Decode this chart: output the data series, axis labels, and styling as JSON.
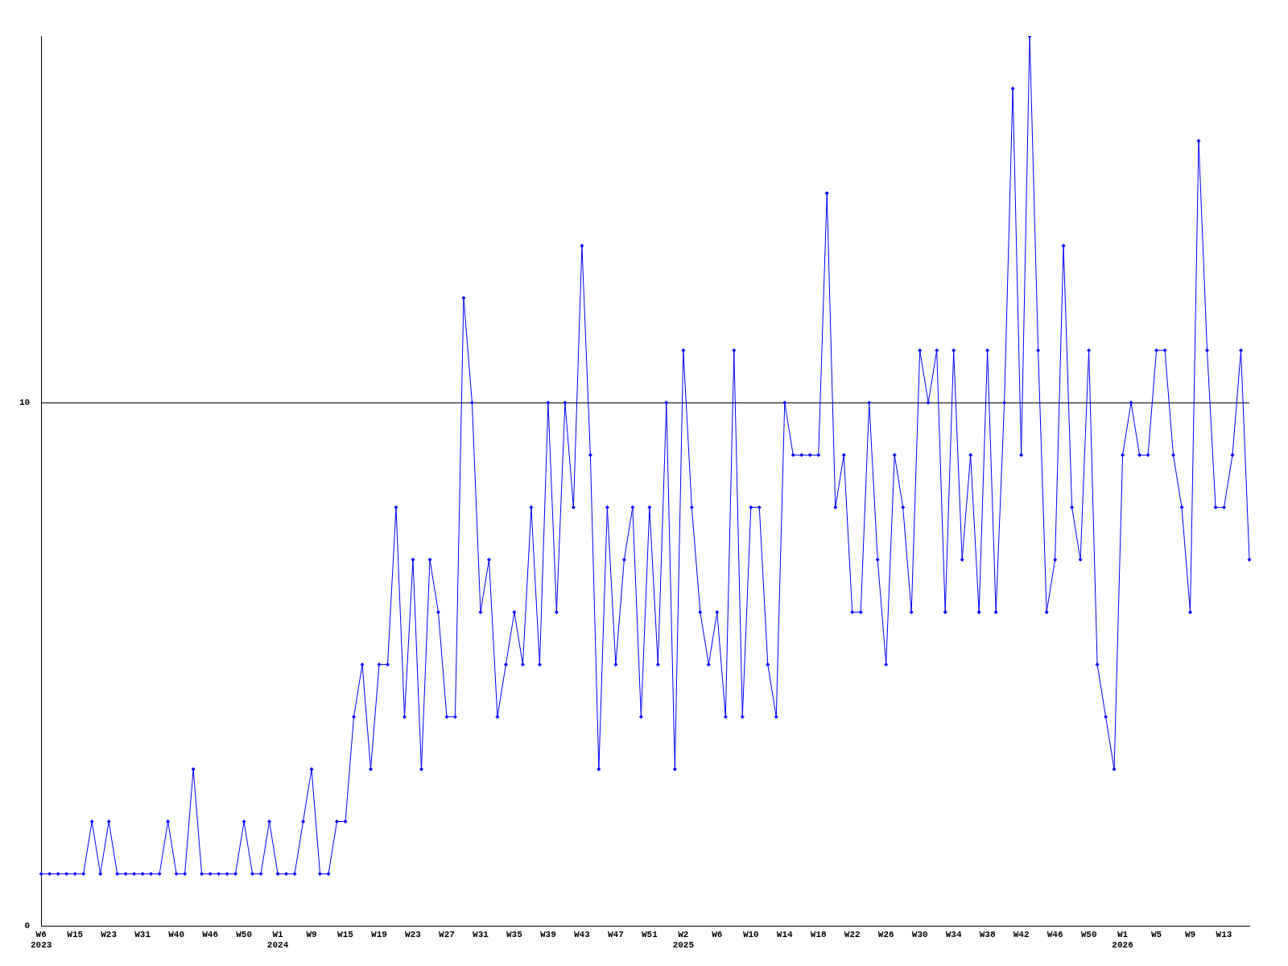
{
  "chart_data": {
    "type": "line",
    "categories": [
      "W6\n2023",
      null,
      null,
      null,
      "W15",
      null,
      null,
      null,
      "W23",
      null,
      null,
      null,
      "W31",
      null,
      null,
      null,
      "W40",
      null,
      null,
      null,
      "W46",
      null,
      null,
      null,
      "W50",
      null,
      null,
      null,
      "W1\n2024",
      null,
      null,
      null,
      "W9",
      null,
      null,
      null,
      "W15",
      null,
      null,
      null,
      "W19",
      null,
      null,
      null,
      "W23",
      null,
      null,
      null,
      "W27",
      null,
      null,
      null,
      "W31",
      null,
      null,
      null,
      "W35",
      null,
      null,
      null,
      "W39",
      null,
      null,
      null,
      "W43",
      null,
      null,
      null,
      "W47",
      null,
      null,
      null,
      "W51",
      null,
      null,
      null,
      "W2\n2025",
      null,
      null,
      null,
      "W6",
      null,
      null,
      null,
      "W10",
      null,
      null,
      null,
      "W14",
      null,
      null,
      null,
      "W18",
      null,
      null,
      null,
      "W22",
      null,
      null,
      null,
      "W26",
      null,
      null,
      null,
      "W30",
      null,
      null,
      null,
      "W34",
      null,
      null,
      null,
      "W38",
      null,
      null,
      null,
      "W42",
      null,
      null,
      null,
      "W46",
      null,
      null,
      null,
      "W50",
      null,
      null,
      null,
      "W1\n2026",
      null,
      null,
      null,
      "W5",
      null,
      null,
      null,
      "W9",
      null,
      null,
      null,
      "W13",
      null,
      null,
      null
    ],
    "series": [
      {
        "color": "#0000ff",
        "values": [
          1,
          1,
          1,
          1,
          1,
          1,
          2,
          1,
          2,
          1,
          1,
          1,
          1,
          1,
          1,
          2,
          1,
          1,
          3,
          1,
          1,
          1,
          1,
          1,
          2,
          1,
          1,
          2,
          1,
          1,
          1,
          2,
          3,
          1,
          1,
          2,
          2,
          4,
          5,
          3,
          5,
          5,
          8,
          4,
          7,
          3,
          7,
          6,
          4,
          4,
          12,
          10,
          6,
          7,
          4,
          5,
          6,
          5,
          8,
          5,
          10,
          6,
          10,
          8,
          13,
          9,
          3,
          8,
          5,
          7,
          8,
          4,
          8,
          5,
          10,
          3,
          11,
          8,
          6,
          5,
          6,
          4,
          11,
          4,
          8,
          8,
          5,
          4,
          10,
          9,
          9,
          9,
          9,
          14,
          8,
          9,
          6,
          6,
          10,
          7,
          5,
          9,
          8,
          6,
          11,
          10,
          11,
          6,
          11,
          7,
          9,
          6,
          11,
          6,
          10,
          16,
          9,
          17,
          11,
          6,
          7,
          13,
          8,
          7,
          11,
          5,
          4,
          3,
          9,
          10,
          9,
          9,
          11,
          11,
          9,
          8,
          6,
          15,
          11,
          8,
          8,
          9,
          11,
          7
        ]
      }
    ],
    "ylim": [
      0,
      17
    ],
    "yticks": [
      0,
      10
    ],
    "grid": "y",
    "marker": "diamond",
    "line_style": "solid"
  }
}
